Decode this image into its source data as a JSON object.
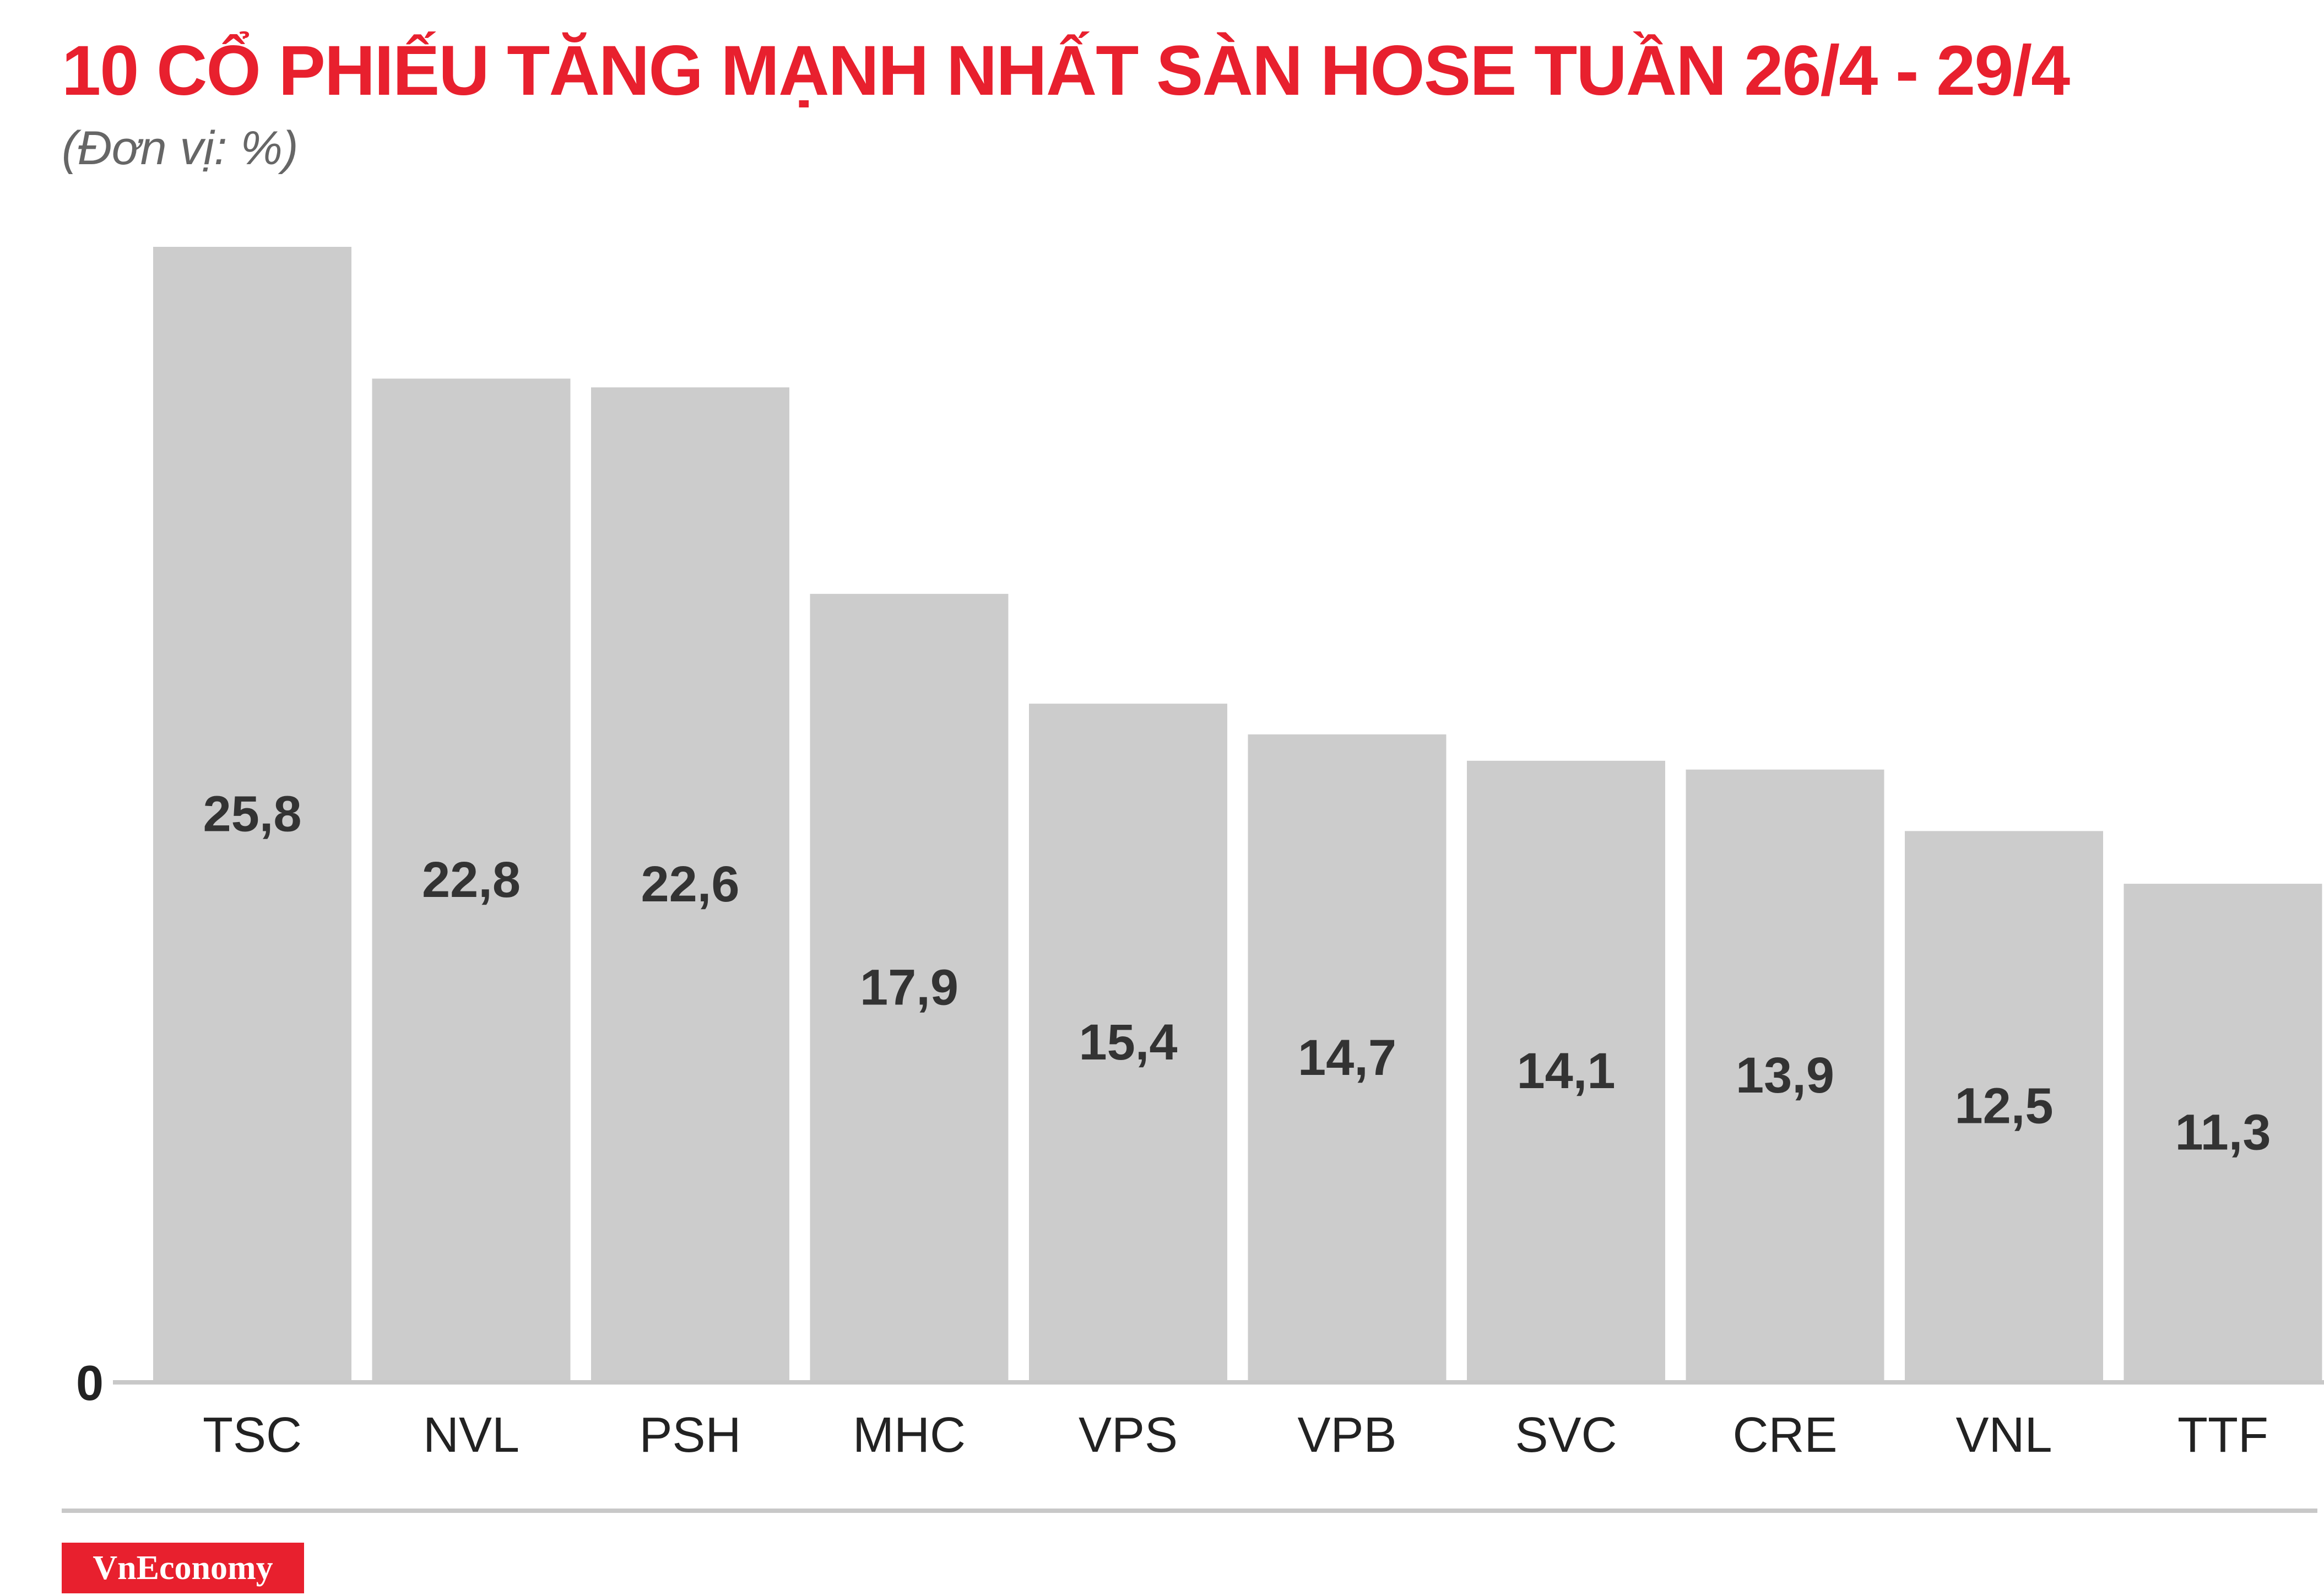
{
  "title": "10 CỔ PHIẾU TĂNG MẠNH NHẤT SÀN HOSE TUẦN 26/4 - 29/4",
  "subtitle": "(Đơn vị: %)",
  "logo_text": "VnEconomy",
  "colors": {
    "title": "#e8202e",
    "bar": "#cccccc",
    "axis": "#c8c8c8",
    "logo_bg": "#e8202e"
  },
  "chart_data": {
    "type": "bar",
    "categories": [
      "TSC",
      "NVL",
      "PSH",
      "MHC",
      "VPS",
      "VPB",
      "SVC",
      "CRE",
      "VNL",
      "TTF"
    ],
    "values": [
      25.8,
      22.8,
      22.6,
      17.9,
      15.4,
      14.7,
      14.1,
      13.9,
      12.5,
      11.3
    ],
    "value_labels": [
      "25,8",
      "22,8",
      "22,6",
      "17,9",
      "15,4",
      "14,7",
      "14,1",
      "13,9",
      "12,5",
      "11,3"
    ],
    "ylim": [
      0,
      25.8
    ],
    "y_tick_labels": [
      "0"
    ],
    "grid": false,
    "legend": "none"
  }
}
